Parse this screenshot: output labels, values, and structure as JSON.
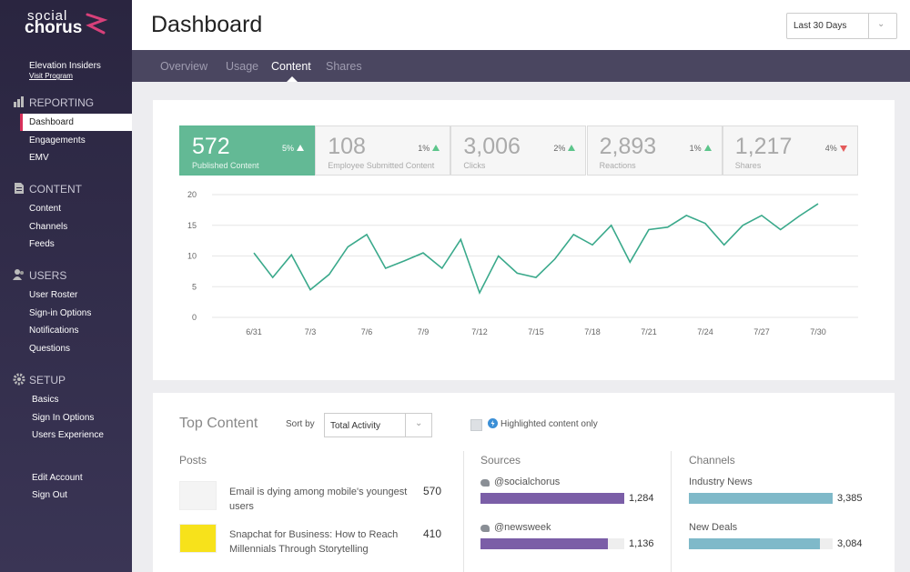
{
  "sidebar": {
    "logo": {
      "top": "social",
      "bottom": "chorus"
    },
    "program": "Elevation Insiders",
    "visit": "Visit Program",
    "sections": [
      {
        "title": "REPORTING",
        "items": [
          "Dashboard",
          "Engagements",
          "EMV"
        ]
      },
      {
        "title": "CONTENT",
        "items": [
          "Content",
          "Channels",
          "Feeds"
        ]
      },
      {
        "title": "USERS",
        "items": [
          "User Roster",
          "Sign-in Options",
          "Notifications",
          "Questions"
        ]
      },
      {
        "title": "SETUP",
        "items": [
          "Basics",
          "Sign In Options",
          "Users Experience"
        ]
      }
    ],
    "footer": [
      "Edit Account",
      "Sign Out"
    ]
  },
  "header": {
    "title": "Dashboard",
    "range": "Last 30 Days"
  },
  "tabs": [
    "Overview",
    "Usage",
    "Content",
    "Shares"
  ],
  "stats": [
    {
      "value": "572",
      "change": "5%",
      "trend": "up",
      "label": "Published Content"
    },
    {
      "value": "108",
      "change": "1%",
      "trend": "up",
      "label": "Employee Submitted Content"
    },
    {
      "value": "3,006",
      "change": "2%",
      "trend": "up",
      "label": "Clicks"
    },
    {
      "value": "2,893",
      "change": "1%",
      "trend": "up",
      "label": "Reactions"
    },
    {
      "value": "1,217",
      "change": "4%",
      "trend": "down",
      "label": "Shares"
    }
  ],
  "chart_data": {
    "type": "line",
    "categories": [
      "6/31",
      null,
      null,
      "7/3",
      null,
      null,
      "7/6",
      null,
      null,
      "7/9",
      null,
      null,
      "7/12",
      null,
      null,
      "7/15",
      null,
      null,
      "7/18",
      null,
      null,
      "7/21",
      null,
      null,
      "7/24",
      null,
      null,
      "7/27",
      null,
      null,
      "7/30"
    ],
    "values": [
      10.5,
      6.5,
      10.2,
      4.5,
      7,
      11.5,
      13.5,
      8,
      9.2,
      10.5,
      8,
      12.7,
      4,
      10,
      7.2,
      6.5,
      9.5,
      13.5,
      11.8,
      15,
      9,
      14.3,
      14.7,
      16.6,
      15.3,
      11.8,
      15,
      16.6,
      14.3,
      16.5,
      18.5
    ],
    "color": "#3aa98b",
    "ylim": [
      0,
      20
    ],
    "yticks": [
      0,
      5,
      10,
      15,
      20
    ],
    "grid": true
  },
  "top_content": {
    "title": "Top Content",
    "sort_label": "Sort by",
    "sort": "Total Activity",
    "highlight": "Highlighted content only",
    "posts": {
      "title": "Posts",
      "items": [
        {
          "text": "Email is dying among mobile's youngest users",
          "count": "570",
          "thumb_color": "#f4f4f4"
        },
        {
          "text": "Snapchat for Business: How to Reach Millennials Through Storytelling",
          "count": "410",
          "thumb_color": "#f7e21b"
        }
      ]
    },
    "sources": {
      "title": "Sources",
      "color": "#7b5ea7",
      "items": [
        {
          "name": "@socialchorus",
          "value": 1284,
          "label": "1,284"
        },
        {
          "name": "@newsweek",
          "value": 1136,
          "label": "1,136"
        }
      ]
    },
    "channels": {
      "title": "Channels",
      "color": "#7fb9c9",
      "items": [
        {
          "name": "Industry News",
          "value": 3385,
          "label": "3,385"
        },
        {
          "name": "New Deals",
          "value": 3084,
          "label": "3,084"
        }
      ]
    }
  }
}
